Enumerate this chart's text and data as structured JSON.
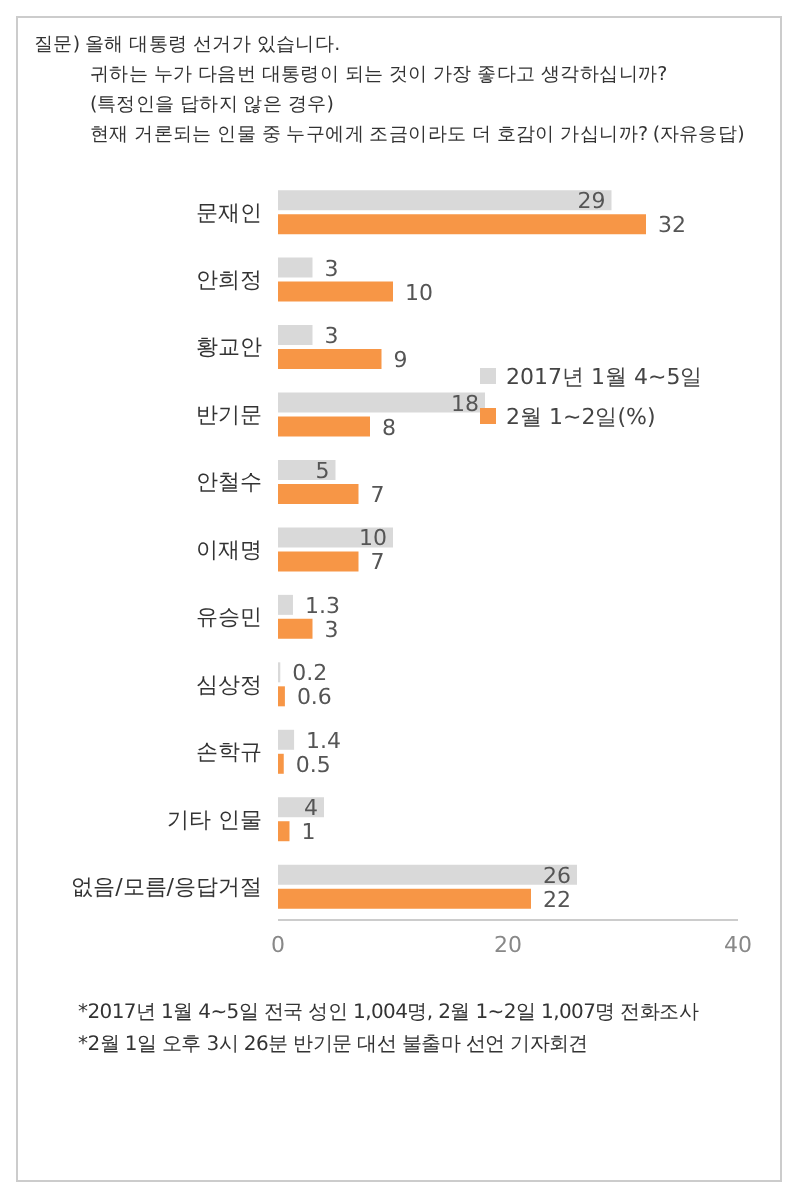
{
  "chart_data": {
    "type": "bar",
    "orientation": "horizontal",
    "title": "질문) 올해 대통령 선거가 있습니다.",
    "subtitle": "귀하는 누가 다음번 대통령이 되는 것이 가장 좋다고 생각하십니까?\n(특정인을 답하지 않은 경우)\n현재 거론되는 인물 중 누구에게 조금이라도 더 호감이 가십니까? (자유응답)",
    "categories": [
      "문재인",
      "안희정",
      "황교안",
      "반기문",
      "안철수",
      "이재명",
      "유승민",
      "심상정",
      "손학규",
      "기타 인물",
      "없음/모름/응답거절"
    ],
    "series": [
      {
        "name": "2017년 1월 4~5일",
        "color": "#d9d9d9",
        "values": [
          29,
          3,
          3,
          18,
          5,
          10,
          1.3,
          0.2,
          1.4,
          4,
          26
        ]
      },
      {
        "name": "2월 1~2일(%)",
        "color": "#f79646",
        "values": [
          32,
          10,
          9,
          8,
          7,
          7,
          3,
          0.6,
          0.5,
          1,
          22
        ]
      }
    ],
    "xlim": [
      0,
      40
    ],
    "xticks": [
      0,
      20,
      40
    ],
    "legend": "right",
    "data_labels": true,
    "annotations": [
      "*2017년 1월 4~5일 전국 성인 1,004명, 2월 1~2일 1,007명 전화조사",
      "*2월 1일 오후 3시 26분 반기문 대선 불출마 선언 기자회견"
    ]
  }
}
